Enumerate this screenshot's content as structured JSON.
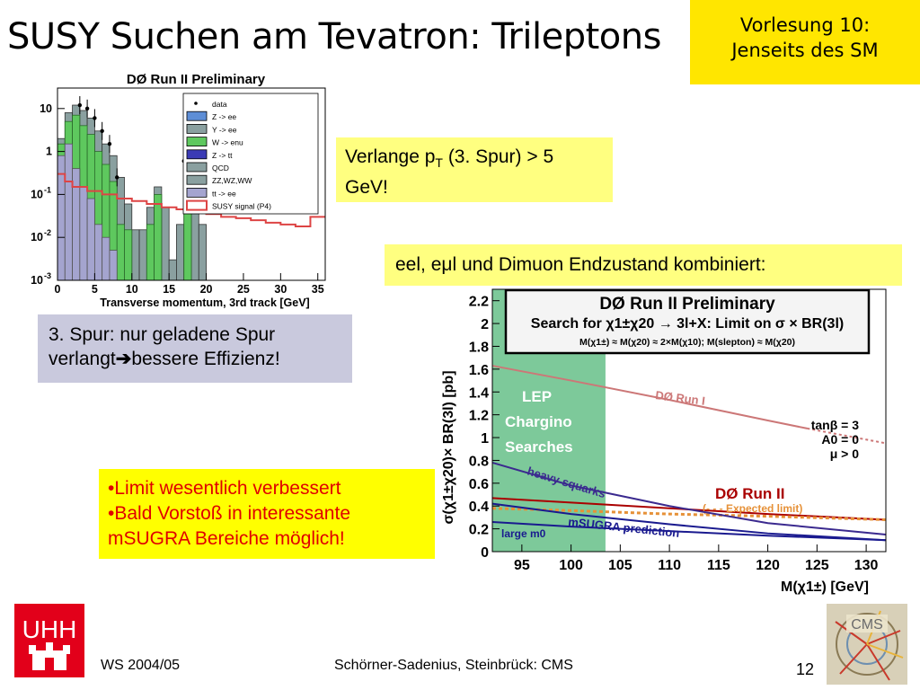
{
  "slide": {
    "title": "SUSY Suchen am Tevatron: Trileptons",
    "lecture_line1": "Vorlesung 10:",
    "lecture_line2": "Jenseits des SM",
    "footer_left": "WS 2004/05",
    "footer_center": "Schörner-Sadenius, Steinbrück: CMS",
    "page_number": "12",
    "logo_left_text": "UHH"
  },
  "notes": {
    "pt_cut_line1_pre": "Verlange p",
    "pt_cut_sub": "T",
    "pt_cut_line1_post": " (3. Spur) > 5",
    "pt_cut_line2": "GeV!",
    "combined": "eel, eμl und Dimuon Endzustand kombiniert:",
    "third_track_line1": "3. Spur: nur geladene Spur",
    "third_track_line2_pre": "verlangt",
    "third_track_line2_post": "bessere Effizienz!",
    "bullet1": "Limit wesentlich verbessert",
    "bullet2": "Bald Vorstoß in interessante",
    "bullet3": "mSUGRA Bereiche möglich!",
    "bullet_symbol": "•"
  },
  "chart_data": [
    {
      "type": "bar",
      "title": "DØ  Run II Preliminary",
      "xlabel": "Transverse momentum, 3rd track [GeV]",
      "ylabel": "",
      "yscale": "log",
      "ylim": [
        0.001,
        30
      ],
      "xlim": [
        0,
        36
      ],
      "x_ticks": [
        "0",
        "5",
        "10",
        "15",
        "20",
        "25",
        "30",
        "35"
      ],
      "y_ticks": [
        "10",
        "1",
        "10-1",
        "10-2",
        "10-3"
      ],
      "legend": [
        "data",
        "Z -> ee",
        "Y -> ee",
        "W -> enu",
        "Z -> tt",
        "QCD",
        "ZZ,WZ,WW",
        "tt -> ee",
        "SUSY signal (P4)"
      ],
      "legend_position": "top-right",
      "data_x": [
        3,
        4,
        5,
        6,
        7,
        8,
        17
      ],
      "data_y": [
        12,
        10,
        6,
        3,
        1.5,
        0.25,
        0.6
      ],
      "background_total": [
        {
          "x0": 0,
          "x1": 1,
          "y": 2.0
        },
        {
          "x0": 1,
          "x1": 2,
          "y": 8.0
        },
        {
          "x0": 2,
          "x1": 3,
          "y": 12.0
        },
        {
          "x0": 3,
          "x1": 4,
          "y": 9.0
        },
        {
          "x0": 4,
          "x1": 5,
          "y": 6.0
        },
        {
          "x0": 5,
          "x1": 6,
          "y": 3.0
        },
        {
          "x0": 6,
          "x1": 7,
          "y": 1.5
        },
        {
          "x0": 7,
          "x1": 8,
          "y": 0.8
        },
        {
          "x0": 8,
          "x1": 9,
          "y": 0.25
        },
        {
          "x0": 9,
          "x1": 10,
          "y": 0.06
        },
        {
          "x0": 10,
          "x1": 11,
          "y": 0.015
        },
        {
          "x0": 11,
          "x1": 12,
          "y": 0.015
        },
        {
          "x0": 12,
          "x1": 13,
          "y": 0.05
        },
        {
          "x0": 13,
          "x1": 14,
          "y": 0.15
        },
        {
          "x0": 14,
          "x1": 15,
          "y": 0.05
        },
        {
          "x0": 15,
          "x1": 16,
          "y": 0.003
        },
        {
          "x0": 16,
          "x1": 17,
          "y": 0.02
        },
        {
          "x0": 17,
          "x1": 18,
          "y": 0.15
        },
        {
          "x0": 18,
          "x1": 19,
          "y": 0.15
        },
        {
          "x0": 19,
          "x1": 20,
          "y": 0.02
        },
        {
          "x0": 20,
          "x1": 21,
          "y": 0.001
        }
      ],
      "background_green": [
        {
          "x0": 0,
          "x1": 1,
          "y": 1.5
        },
        {
          "x0": 1,
          "x1": 2,
          "y": 5.0
        },
        {
          "x0": 2,
          "x1": 3,
          "y": 7.0
        },
        {
          "x0": 3,
          "x1": 4,
          "y": 4.0
        },
        {
          "x0": 4,
          "x1": 5,
          "y": 2.5
        },
        {
          "x0": 5,
          "x1": 6,
          "y": 1.0
        },
        {
          "x0": 6,
          "x1": 7,
          "y": 0.5
        },
        {
          "x0": 7,
          "x1": 8,
          "y": 0.2
        },
        {
          "x0": 8,
          "x1": 9,
          "y": 0.02
        },
        {
          "x0": 9,
          "x1": 10,
          "y": 0.015
        },
        {
          "x0": 12,
          "x1": 13,
          "y": 0.02
        },
        {
          "x0": 13,
          "x1": 14,
          "y": 0.1
        },
        {
          "x0": 17,
          "x1": 18,
          "y": 0.05
        }
      ],
      "background_lavender": [
        {
          "x0": 0,
          "x1": 1,
          "y": 0.8
        },
        {
          "x0": 1,
          "x1": 2,
          "y": 1.5
        },
        {
          "x0": 2,
          "x1": 3,
          "y": 0.4
        },
        {
          "x0": 3,
          "x1": 4,
          "y": 0.15
        },
        {
          "x0": 4,
          "x1": 5,
          "y": 0.08
        },
        {
          "x0": 5,
          "x1": 6,
          "y": 0.02
        },
        {
          "x0": 6,
          "x1": 7,
          "y": 0.01
        },
        {
          "x0": 7,
          "x1": 8,
          "y": 0.005
        }
      ],
      "susy_signal": [
        {
          "x0": 0,
          "x1": 1,
          "y": 0.3
        },
        {
          "x0": 1,
          "x1": 2,
          "y": 0.2
        },
        {
          "x0": 2,
          "x1": 4,
          "y": 0.15
        },
        {
          "x0": 4,
          "x1": 6,
          "y": 0.12
        },
        {
          "x0": 6,
          "x1": 8,
          "y": 0.1
        },
        {
          "x0": 8,
          "x1": 10,
          "y": 0.08
        },
        {
          "x0": 10,
          "x1": 12,
          "y": 0.07
        },
        {
          "x0": 12,
          "x1": 14,
          "y": 0.06
        },
        {
          "x0": 14,
          "x1": 16,
          "y": 0.05
        },
        {
          "x0": 16,
          "x1": 18,
          "y": 0.045
        },
        {
          "x0": 18,
          "x1": 20,
          "y": 0.04
        },
        {
          "x0": 20,
          "x1": 22,
          "y": 0.035
        },
        {
          "x0": 22,
          "x1": 24,
          "y": 0.03
        },
        {
          "x0": 24,
          "x1": 26,
          "y": 0.028
        },
        {
          "x0": 26,
          "x1": 28,
          "y": 0.025
        },
        {
          "x0": 28,
          "x1": 30,
          "y": 0.022
        },
        {
          "x0": 30,
          "x1": 32,
          "y": 0.02
        },
        {
          "x0": 32,
          "x1": 34,
          "y": 0.018
        },
        {
          "x0": 34,
          "x1": 36,
          "y": 0.03
        }
      ],
      "colors": {
        "green": "#5ec85e",
        "blue": "#5e8ed6",
        "slate": "#8aa0a0",
        "lavender": "#a4a4cf",
        "signal": "#dd4444"
      }
    },
    {
      "type": "line",
      "title": "DØ Run II Preliminary",
      "subtitle": "Search for χ1±χ20 → 3l+X: Limit on σ × BR(3l)",
      "subtitle_line2": "M(χ1±) ≈ M(χ20) ≈ 2×M(χ10); M(slepton) ≈ M(χ20)",
      "xlabel": "M(χ1±) [GeV]",
      "ylabel": "σ(χ1±χ20)× BR(3l) [pb]",
      "xlim": [
        92,
        132
      ],
      "ylim": [
        0,
        2.3
      ],
      "x_ticks": [
        "95",
        "100",
        "105",
        "110",
        "115",
        "120",
        "125",
        "130"
      ],
      "y_ticks": [
        "0",
        "0.2",
        "0.4",
        "0.6",
        "0.8",
        "1",
        "1.2",
        "1.4",
        "1.6",
        "1.8",
        "2",
        "2.2"
      ],
      "lep_region": {
        "x0": 92,
        "x1": 103.5,
        "label1": "LEP",
        "label2": "Chargino",
        "label3": "Searches",
        "color": "#7dc99a"
      },
      "params": [
        "tanβ = 3",
        "A0 = 0",
        "μ > 0"
      ],
      "series": [
        {
          "name": "DØ Run I",
          "x": [
            92,
            100,
            110,
            120,
            124
          ],
          "y": [
            1.63,
            1.5,
            1.33,
            1.15,
            1.08
          ],
          "dashed_x": [
            124,
            132
          ],
          "dashed_y": [
            1.08,
            0.95
          ],
          "color": "#cc7777"
        },
        {
          "name": "DØ Run II",
          "x": [
            92,
            100,
            110,
            120,
            132
          ],
          "y": [
            0.47,
            0.43,
            0.38,
            0.33,
            0.28
          ],
          "color": "#aa0000"
        },
        {
          "name": "(- - - Expected limit)",
          "x": [
            92,
            100,
            110,
            120,
            132
          ],
          "y": [
            0.38,
            0.36,
            0.33,
            0.31,
            0.28
          ],
          "color": "#e69138",
          "dashed": true
        },
        {
          "name": "heavy squarks",
          "x": [
            92,
            100,
            110,
            120,
            132
          ],
          "y": [
            0.78,
            0.58,
            0.4,
            0.25,
            0.15
          ],
          "color": "#3b2a8f"
        },
        {
          "name": "mSUGRA prediction",
          "x": [
            92,
            100,
            110,
            120,
            132
          ],
          "y": [
            0.42,
            0.33,
            0.24,
            0.16,
            0.1
          ],
          "color": "#1a1a8f"
        },
        {
          "name": "large m0",
          "x": [
            92,
            100,
            110,
            120,
            132
          ],
          "y": [
            0.26,
            0.22,
            0.18,
            0.14,
            0.1
          ],
          "color": "#1a1a8f"
        }
      ]
    }
  ]
}
